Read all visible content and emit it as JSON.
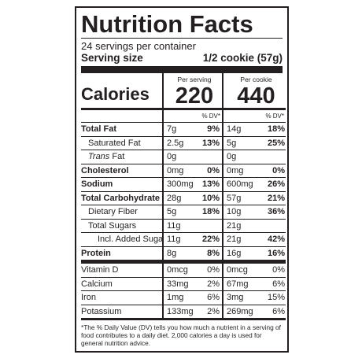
{
  "label": {
    "title": "Nutrition Facts",
    "servings": "24 servings per container",
    "serving_size_label": "Serving size",
    "serving_size_value": "1/2 cookie (57g)",
    "calories_label": "Calories",
    "per_serving_header": "Per serving",
    "per_cookie_header": "Per cookie",
    "calories_serving": "220",
    "calories_cookie": "440",
    "dv_header": "% DV*",
    "rows": [
      {
        "name": "Total Fat",
        "s_amt": "7g",
        "s_dv": "9%",
        "c_amt": "14g",
        "c_dv": "18%"
      },
      {
        "name": "Saturated Fat",
        "s_amt": "2.5g",
        "s_dv": "13%",
        "c_amt": "5g",
        "c_dv": "25%"
      },
      {
        "name": "Trans",
        "name_suffix": " Fat",
        "s_amt": "0g",
        "s_dv": "",
        "c_amt": "0g",
        "c_dv": ""
      },
      {
        "name": "Cholesterol",
        "s_amt": "0mg",
        "s_dv": "0%",
        "c_amt": "0mg",
        "c_dv": "0%"
      },
      {
        "name": "Sodium",
        "s_amt": "300mg",
        "s_dv": "13%",
        "c_amt": "600mg",
        "c_dv": "26%"
      },
      {
        "name": "Total Carbohydrate",
        "s_amt": "28g",
        "s_dv": "10%",
        "c_amt": "57g",
        "c_dv": "21%"
      },
      {
        "name": "Dietary Fiber",
        "s_amt": "5g",
        "s_dv": "18%",
        "c_amt": "10g",
        "c_dv": "36%"
      },
      {
        "name": "Total Sugars",
        "s_amt": "11g",
        "s_dv": "",
        "c_amt": "21g",
        "c_dv": ""
      },
      {
        "name": "Incl. Added Sugars",
        "s_amt": "11g",
        "s_dv": "22%",
        "c_amt": "21g",
        "c_dv": "42%"
      },
      {
        "name": "Protein",
        "s_amt": "8g",
        "s_dv": "8%",
        "c_amt": "16g",
        "c_dv": "16%"
      }
    ],
    "vitamins": [
      {
        "name": "Vitamin D",
        "s_amt": "0mcg",
        "s_dv": "0%",
        "c_amt": "0mcg",
        "c_dv": "0%"
      },
      {
        "name": "Calcium",
        "s_amt": "33mg",
        "s_dv": "2%",
        "c_amt": "67mg",
        "c_dv": "6%"
      },
      {
        "name": "Iron",
        "s_amt": "1mg",
        "s_dv": "6%",
        "c_amt": "3mg",
        "c_dv": "15%"
      },
      {
        "name": "Potassium",
        "s_amt": "133mg",
        "s_dv": "2%",
        "c_amt": "269mg",
        "c_dv": "6%"
      }
    ],
    "footnote": "*The % Daily Value (DV) tells you how much a nutrient in a serving of food contributes to a daily diet. 2,000 calories a day is used for general nutrition advice."
  }
}
